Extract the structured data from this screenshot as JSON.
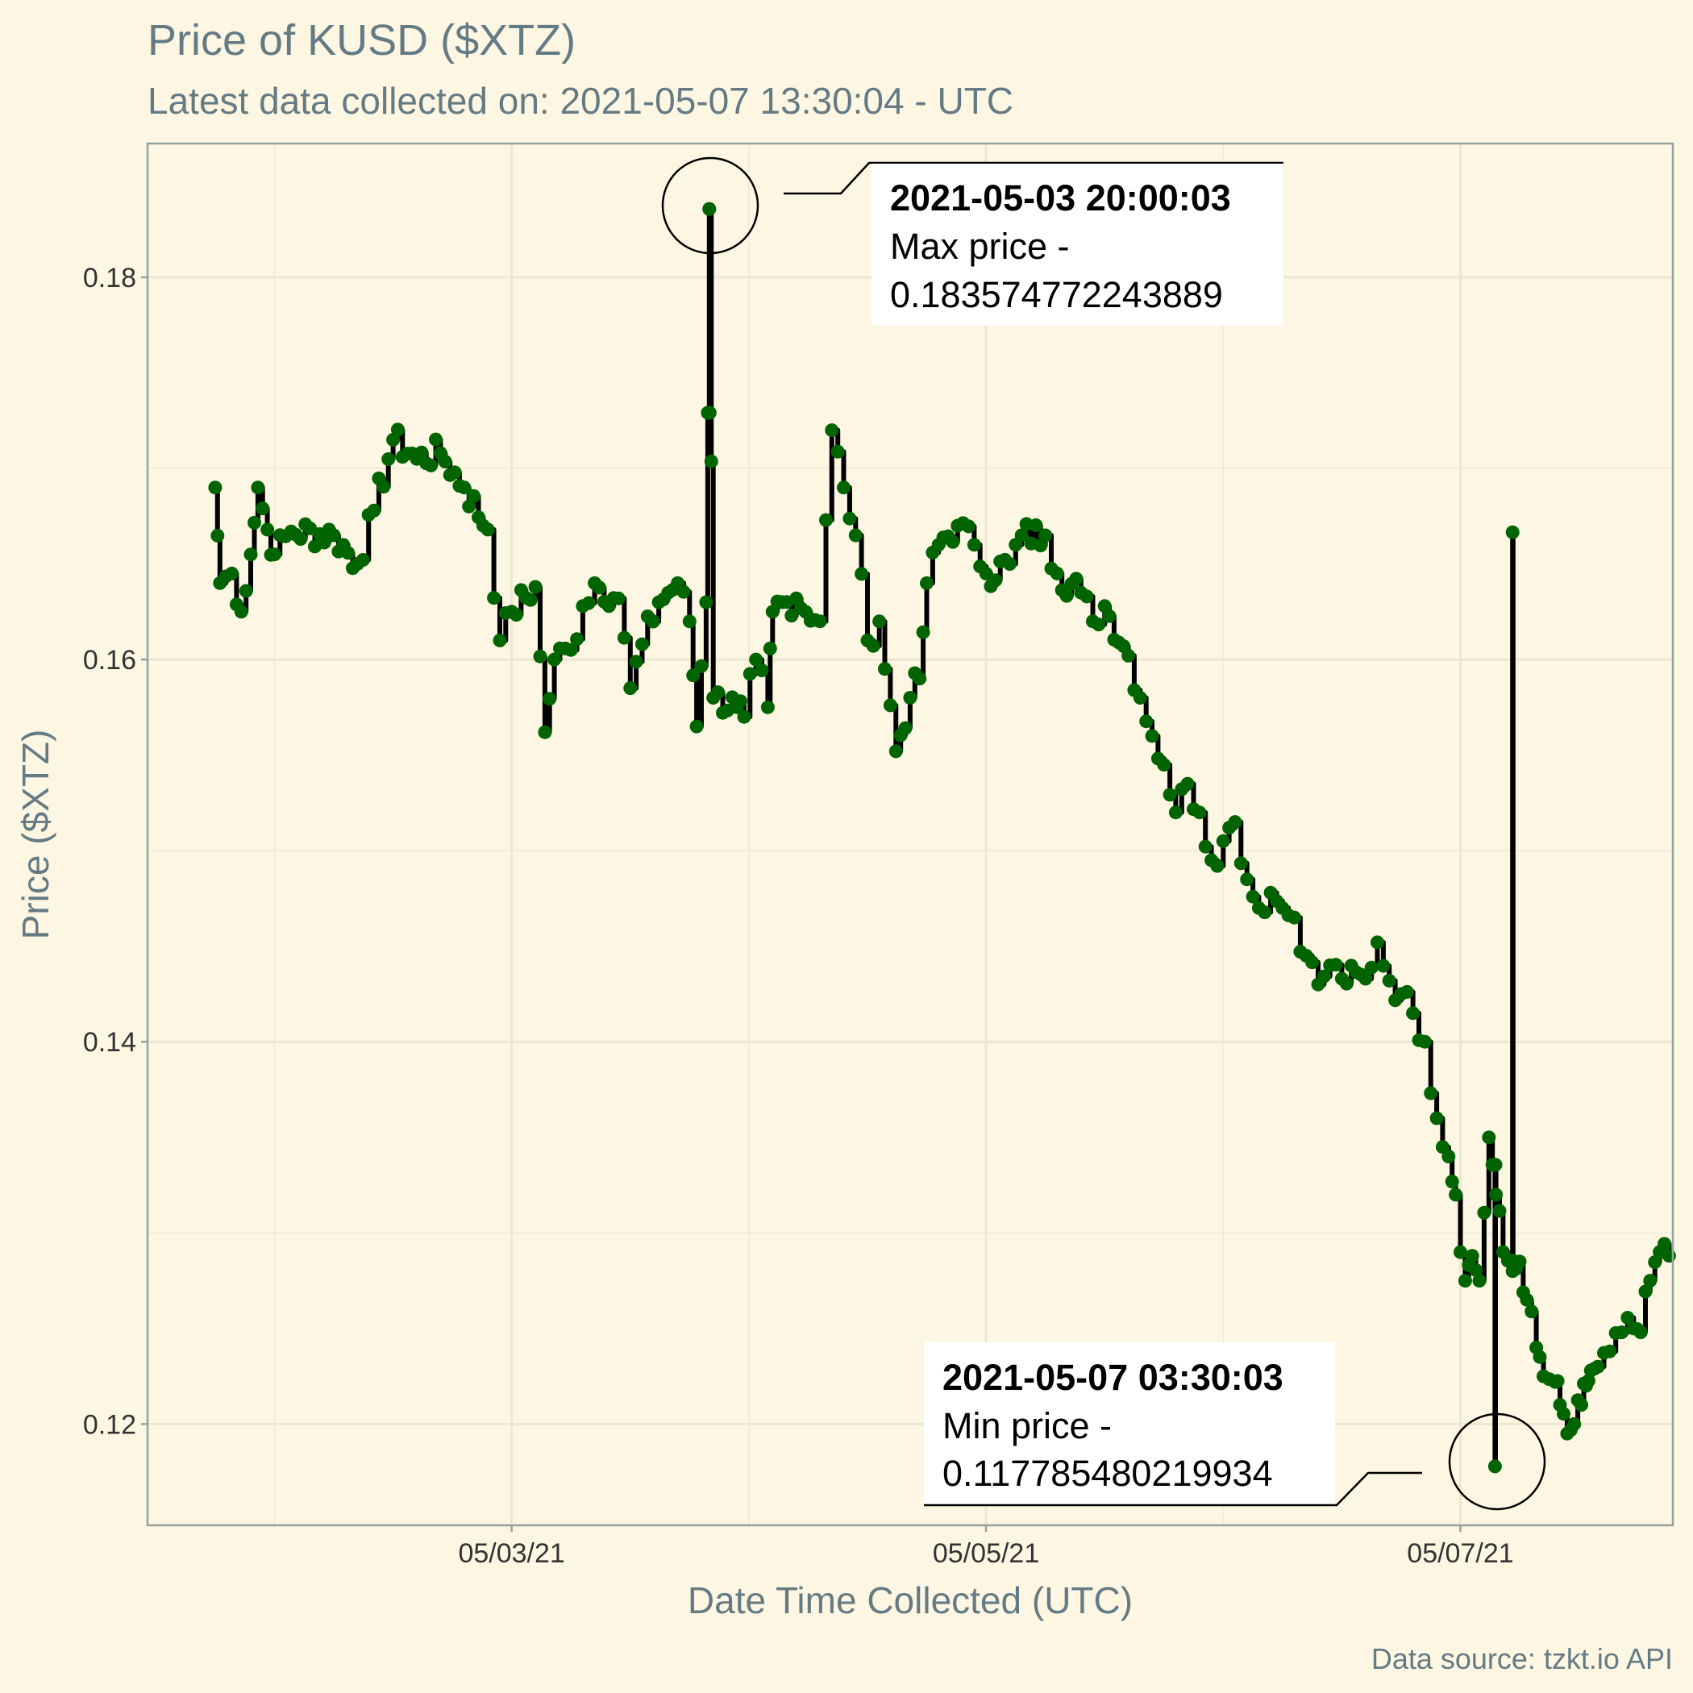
{
  "chart_data": {
    "type": "line",
    "title": "Price of KUSD ($XTZ)",
    "subtitle": "Latest data collected on: 2021-05-07 13:30:04  - UTC",
    "xlabel": "Date Time Collected (UTC)",
    "ylabel": "Price ($XTZ)",
    "caption": "Data source: tzkt.io API",
    "x_ticks": [
      {
        "label": "05/03/21",
        "day": 2
      },
      {
        "label": "05/05/21",
        "day": 4
      },
      {
        "label": "05/07/21",
        "day": 6
      }
    ],
    "y_ticks": [
      {
        "label": "0.18",
        "value": 0.18
      },
      {
        "label": "0.16",
        "value": 0.16
      },
      {
        "label": "0.14",
        "value": 0.14
      },
      {
        "label": "0.12",
        "value": 0.12
      }
    ],
    "xlim": [
      0.4648,
      6.8957
    ],
    "ylim": [
      0.1147,
      0.187
    ],
    "grid": true,
    "line_color": "#000000",
    "point_color": "#006400",
    "background": "#fdf6e3",
    "annotations": [
      {
        "time": "2021-05-03 20:00:03",
        "label": "Max price -",
        "value": "0.183574772243889",
        "day": 2.8333,
        "y": 0.183575
      },
      {
        "time": "2021-05-07 03:30:03",
        "label": "Min price -",
        "value": "0.117785480219934",
        "day": 6.1458,
        "y": 0.117785
      }
    ],
    "anchors": [
      [
        0.75,
        0.169
      ],
      [
        0.77,
        0.164
      ],
      [
        0.82,
        0.1645
      ],
      [
        0.86,
        0.1625
      ],
      [
        0.9,
        0.1655
      ],
      [
        0.93,
        0.169
      ],
      [
        0.97,
        0.1668
      ],
      [
        1.0,
        0.1655
      ],
      [
        1.07,
        0.1667
      ],
      [
        1.25,
        0.1665
      ],
      [
        1.35,
        0.165
      ],
      [
        1.42,
        0.1678
      ],
      [
        1.5,
        0.1715
      ],
      [
        1.6,
        0.1705
      ],
      [
        1.7,
        0.1708
      ],
      [
        1.8,
        0.169
      ],
      [
        1.9,
        0.1668
      ],
      [
        1.95,
        0.161
      ],
      [
        2.0,
        0.1625
      ],
      [
        2.1,
        0.1638
      ],
      [
        2.14,
        0.1562
      ],
      [
        2.18,
        0.16
      ],
      [
        2.25,
        0.1605
      ],
      [
        2.3,
        0.1628
      ],
      [
        2.35,
        0.164
      ],
      [
        2.45,
        0.1632
      ],
      [
        2.5,
        0.1585
      ],
      [
        2.55,
        0.1608
      ],
      [
        2.62,
        0.163
      ],
      [
        2.7,
        0.164
      ],
      [
        2.75,
        0.162
      ],
      [
        2.78,
        0.1565
      ],
      [
        2.82,
        0.163
      ],
      [
        2.8333,
        0.183575
      ],
      [
        2.85,
        0.158
      ],
      [
        2.95,
        0.1575
      ],
      [
        2.98,
        0.157
      ],
      [
        3.03,
        0.16
      ],
      [
        3.08,
        0.1575
      ],
      [
        3.1,
        0.1625
      ],
      [
        3.2,
        0.1632
      ],
      [
        3.3,
        0.162
      ],
      [
        3.35,
        0.172
      ],
      [
        3.4,
        0.169
      ],
      [
        3.45,
        0.1665
      ],
      [
        3.5,
        0.161
      ],
      [
        3.55,
        0.162
      ],
      [
        3.62,
        0.1552
      ],
      [
        3.68,
        0.158
      ],
      [
        3.72,
        0.159
      ],
      [
        3.75,
        0.164
      ],
      [
        3.8,
        0.166
      ],
      [
        3.88,
        0.167
      ],
      [
        3.95,
        0.166
      ],
      [
        4.0,
        0.1645
      ],
      [
        4.1,
        0.165
      ],
      [
        4.15,
        0.1665
      ],
      [
        4.25,
        0.1665
      ],
      [
        4.3,
        0.1645
      ],
      [
        4.4,
        0.1635
      ],
      [
        4.45,
        0.162
      ],
      [
        4.5,
        0.1628
      ],
      [
        4.6,
        0.1602
      ],
      [
        4.65,
        0.158
      ],
      [
        4.7,
        0.156
      ],
      [
        4.75,
        0.1545
      ],
      [
        4.8,
        0.152
      ],
      [
        4.85,
        0.1535
      ],
      [
        4.9,
        0.152
      ],
      [
        4.95,
        0.1495
      ],
      [
        5.0,
        0.1505
      ],
      [
        5.05,
        0.1515
      ],
      [
        5.1,
        0.1485
      ],
      [
        5.15,
        0.147
      ],
      [
        5.2,
        0.1478
      ],
      [
        5.25,
        0.147
      ],
      [
        5.3,
        0.1465
      ],
      [
        5.35,
        0.1445
      ],
      [
        5.4,
        0.143
      ],
      [
        5.45,
        0.144
      ],
      [
        5.5,
        0.1433
      ],
      [
        5.6,
        0.1433
      ],
      [
        5.65,
        0.1452
      ],
      [
        5.7,
        0.1432
      ],
      [
        5.75,
        0.1425
      ],
      [
        5.8,
        0.1415
      ],
      [
        5.85,
        0.14
      ],
      [
        5.9,
        0.136
      ],
      [
        5.95,
        0.134
      ],
      [
        5.98,
        0.132
      ],
      [
        6.02,
        0.1275
      ],
      [
        6.05,
        0.1288
      ],
      [
        6.08,
        0.1275
      ],
      [
        6.12,
        0.135
      ],
      [
        6.15,
        0.132
      ],
      [
        6.18,
        0.129
      ],
      [
        6.22,
        0.128
      ],
      [
        6.25,
        0.1285
      ],
      [
        6.28,
        0.1265
      ],
      [
        6.32,
        0.124
      ],
      [
        6.35,
        0.1225
      ],
      [
        6.4,
        0.1222
      ],
      [
        6.42,
        0.121
      ],
      [
        6.45,
        0.1195
      ],
      [
        6.48,
        0.12
      ],
      [
        6.51,
        0.121
      ],
      [
        6.53,
        0.122
      ],
      [
        6.55,
        0.1228
      ],
      [
        6.58,
        0.123
      ],
      [
        6.63,
        0.1238
      ],
      [
        6.68,
        0.1248
      ],
      [
        6.73,
        0.125
      ],
      [
        6.76,
        0.1248
      ],
      [
        6.8,
        0.1275
      ],
      [
        6.84,
        0.129
      ],
      [
        6.88,
        0.1288
      ]
    ],
    "spikes": [
      [
        2.8333,
        0.183575
      ],
      [
        6.22,
        0.16666
      ]
    ],
    "dips": [
      [
        6.1458,
        0.117785
      ]
    ]
  }
}
